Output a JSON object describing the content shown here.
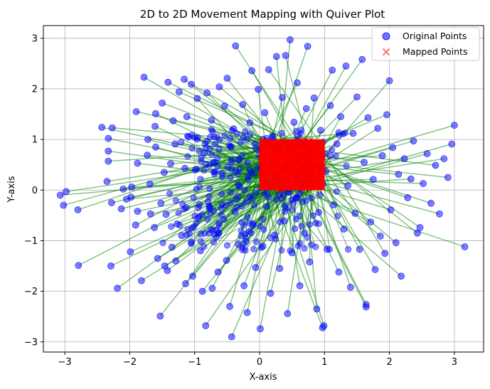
{
  "chart_data": {
    "type": "scatter",
    "title": "2D to 2D Movement Mapping with Quiver Plot",
    "xlabel": "X-axis",
    "ylabel": "Y-axis",
    "xlim": [
      -3.33,
      3.45
    ],
    "ylim": [
      -3.2,
      3.25
    ],
    "xticks": [
      -3,
      -2,
      -1,
      0,
      1,
      2,
      3
    ],
    "yticks": [
      -3,
      -2,
      -1,
      0,
      1,
      2,
      3
    ],
    "xtick_labels": [
      "−3",
      "−2",
      "−1",
      "0",
      "1",
      "2",
      "3"
    ],
    "ytick_labels": [
      "−3",
      "−2",
      "−1",
      "0",
      "1",
      "2",
      "3"
    ],
    "grid": true,
    "legend_position": "top-right",
    "mapped_region": {
      "x": [
        0,
        1
      ],
      "y": [
        0,
        1
      ]
    },
    "colors": {
      "original": "#0000ff",
      "mapped": "#ff0000",
      "arrow": "#008000",
      "grid": "#b0b0b0"
    },
    "series": [
      {
        "name": "Original Points",
        "marker": "circle",
        "points": [
          [
            -3.07,
            -0.1
          ],
          [
            -3.02,
            -0.3
          ],
          [
            -2.98,
            -0.03
          ],
          [
            -2.8,
            -0.39
          ],
          [
            -2.79,
            -1.49
          ],
          [
            -2.43,
            1.24
          ],
          [
            -2.33,
            1.02
          ],
          [
            -2.33,
            0.77
          ],
          [
            -2.33,
            0.57
          ],
          [
            -2.35,
            0.17
          ],
          [
            -2.28,
            -0.25
          ],
          [
            -2.29,
            -1.5
          ],
          [
            -2.19,
            -1.94
          ],
          [
            -2.27,
            1.23
          ],
          [
            -2.13,
            -0.37
          ],
          [
            -2.05,
            -0.18
          ],
          [
            -2.1,
            0.02
          ],
          [
            -1.98,
            -0.14
          ],
          [
            -1.99,
            -1.22
          ],
          [
            -1.97,
            0.06
          ],
          [
            -1.91,
            -0.69
          ],
          [
            -1.88,
            -0.42
          ],
          [
            -1.9,
            1.55
          ],
          [
            -1.88,
            0.53
          ],
          [
            -1.82,
            -1.79
          ],
          [
            -1.78,
            2.23
          ],
          [
            -1.72,
            1.0
          ],
          [
            -1.73,
            0.69
          ],
          [
            -1.69,
            0.12
          ],
          [
            -1.68,
            -0.47
          ],
          [
            -1.61,
            1.26
          ],
          [
            -1.6,
            0.85
          ],
          [
            -1.62,
            -0.74
          ],
          [
            -1.6,
            1.51
          ],
          [
            -1.57,
            -1.35
          ],
          [
            -1.53,
            -2.49
          ],
          [
            -1.5,
            1.72
          ],
          [
            -1.52,
            -0.26
          ],
          [
            -1.47,
            0.35
          ],
          [
            -1.46,
            -1.5
          ],
          [
            -1.41,
            2.13
          ],
          [
            -1.44,
            -0.48
          ],
          [
            -1.42,
            -1.59
          ],
          [
            -1.37,
            0.52
          ],
          [
            -1.35,
            -1.13
          ],
          [
            -1.33,
            1.37
          ],
          [
            -1.3,
            0.91
          ],
          [
            -1.27,
            -0.67
          ],
          [
            -1.29,
            -1.4
          ],
          [
            -1.24,
            1.94
          ],
          [
            -1.2,
            -0.9
          ],
          [
            -1.16,
            2.19
          ],
          [
            -1.15,
            0.43
          ],
          [
            -1.13,
            -0.35
          ],
          [
            -1.14,
            -1.85
          ],
          [
            -1.12,
            1.45
          ],
          [
            -1.09,
            1.05
          ],
          [
            -1.05,
            -1.03
          ],
          [
            -1.05,
            2.09
          ],
          [
            -1.03,
            -1.7
          ],
          [
            -0.99,
            0.4
          ],
          [
            -0.96,
            1.81
          ],
          [
            -0.93,
            -0.29
          ],
          [
            -0.91,
            -1.2
          ],
          [
            -0.88,
            -2.0
          ],
          [
            -0.85,
            0.73
          ],
          [
            -0.83,
            -2.68
          ],
          [
            -0.81,
            1.92
          ],
          [
            -0.77,
            -0.36
          ],
          [
            -0.73,
            -1.94
          ],
          [
            -0.74,
            1.38
          ],
          [
            -0.69,
            0.55
          ],
          [
            -0.66,
            -0.8
          ],
          [
            -0.64,
            -1.62
          ],
          [
            -0.62,
            2.04
          ],
          [
            -0.58,
            0.33
          ],
          [
            -0.55,
            -0.58
          ],
          [
            -0.54,
            1.66
          ],
          [
            -0.51,
            -1.39
          ],
          [
            -0.5,
            2.21
          ],
          [
            -0.46,
            -2.3
          ],
          [
            -0.44,
            0.86
          ],
          [
            -0.43,
            -2.9
          ],
          [
            -0.4,
            1.21
          ],
          [
            -0.38,
            -0.43
          ],
          [
            -0.37,
            2.85
          ],
          [
            -0.33,
            -1.07
          ],
          [
            -0.31,
            0.07
          ],
          [
            -0.26,
            1.69
          ],
          [
            -0.24,
            -1.89
          ],
          [
            -0.2,
            -0.22
          ],
          [
            -0.19,
            -2.42
          ],
          [
            -0.15,
            1.33
          ],
          [
            -0.12,
            2.36
          ],
          [
            -0.1,
            -0.7
          ],
          [
            -0.07,
            0.91
          ],
          [
            -0.06,
            -1.53
          ],
          [
            -0.02,
            1.99
          ],
          [
            0.01,
            -2.74
          ],
          [
            0.03,
            0.42
          ],
          [
            0.05,
            -1.11
          ],
          [
            0.08,
            1.53
          ],
          [
            0.11,
            -0.32
          ],
          [
            0.14,
            2.38
          ],
          [
            0.17,
            -2.04
          ],
          [
            0.2,
            1.06
          ],
          [
            0.23,
            -0.89
          ],
          [
            0.26,
            2.64
          ],
          [
            0.29,
            0.27
          ],
          [
            0.31,
            -1.55
          ],
          [
            0.35,
            1.83
          ],
          [
            0.38,
            -0.61
          ],
          [
            0.4,
            2.66
          ],
          [
            0.43,
            -2.44
          ],
          [
            0.45,
            0.62
          ],
          [
            0.47,
            2.97
          ],
          [
            0.5,
            -1.24
          ],
          [
            0.53,
            1.34
          ],
          [
            0.56,
            -0.17
          ],
          [
            0.58,
            2.12
          ],
          [
            0.62,
            -1.89
          ],
          [
            0.65,
            0.88
          ],
          [
            0.69,
            -0.85
          ],
          [
            0.72,
            1.61
          ],
          [
            0.74,
            2.84
          ],
          [
            0.77,
            -1.42
          ],
          [
            0.81,
            0.19
          ],
          [
            0.84,
            1.82
          ],
          [
            0.88,
            -2.35
          ],
          [
            0.91,
            -0.44
          ],
          [
            0.94,
            1.18
          ],
          [
            0.97,
            -2.72
          ],
          [
            0.99,
            -2.68
          ],
          [
            1.02,
            0.37
          ],
          [
            1.04,
            -1.17
          ],
          [
            1.09,
            1.67
          ],
          [
            1.12,
            2.37
          ],
          [
            1.14,
            -0.29
          ],
          [
            1.19,
            0.91
          ],
          [
            1.22,
            -1.62
          ],
          [
            1.25,
            1.45
          ],
          [
            1.3,
            -0.77
          ],
          [
            1.33,
            2.45
          ],
          [
            1.36,
            0.09
          ],
          [
            1.4,
            -1.92
          ],
          [
            1.44,
            1.12
          ],
          [
            1.47,
            -0.46
          ],
          [
            1.5,
            1.84
          ],
          [
            1.54,
            -1.17
          ],
          [
            1.58,
            2.58
          ],
          [
            1.61,
            0.55
          ],
          [
            1.64,
            -2.26
          ],
          [
            1.64,
            -2.31
          ],
          [
            1.67,
            1.43
          ],
          [
            1.71,
            -0.63
          ],
          [
            1.75,
            0.21
          ],
          [
            1.78,
            -1.57
          ],
          [
            1.82,
            1.22
          ],
          [
            1.86,
            -0.91
          ],
          [
            1.89,
            0.68
          ],
          [
            1.93,
            -1.25
          ],
          [
            1.96,
            1.49
          ],
          [
            2.0,
            2.16
          ],
          [
            2.02,
            -0.39
          ],
          [
            2.05,
            0.84
          ],
          [
            2.1,
            -1.04
          ],
          [
            2.14,
            0.31
          ],
          [
            2.18,
            -1.7
          ],
          [
            2.23,
            0.62
          ],
          [
            2.28,
            -0.15
          ],
          [
            2.33,
            0.22
          ],
          [
            2.37,
            0.97
          ],
          [
            2.43,
            -0.85
          ],
          [
            2.47,
            -0.74
          ],
          [
            2.52,
            0.13
          ],
          [
            2.58,
            0.72
          ],
          [
            2.64,
            -0.26
          ],
          [
            2.71,
            0.49
          ],
          [
            2.77,
            -0.47
          ],
          [
            2.84,
            0.62
          ],
          [
            2.9,
            0.25
          ],
          [
            2.96,
            0.91
          ],
          [
            3.0,
            1.28
          ],
          [
            3.16,
            -1.12
          ]
        ]
      },
      {
        "name": "Mapped Points",
        "marker": "x",
        "points": []
      }
    ]
  }
}
